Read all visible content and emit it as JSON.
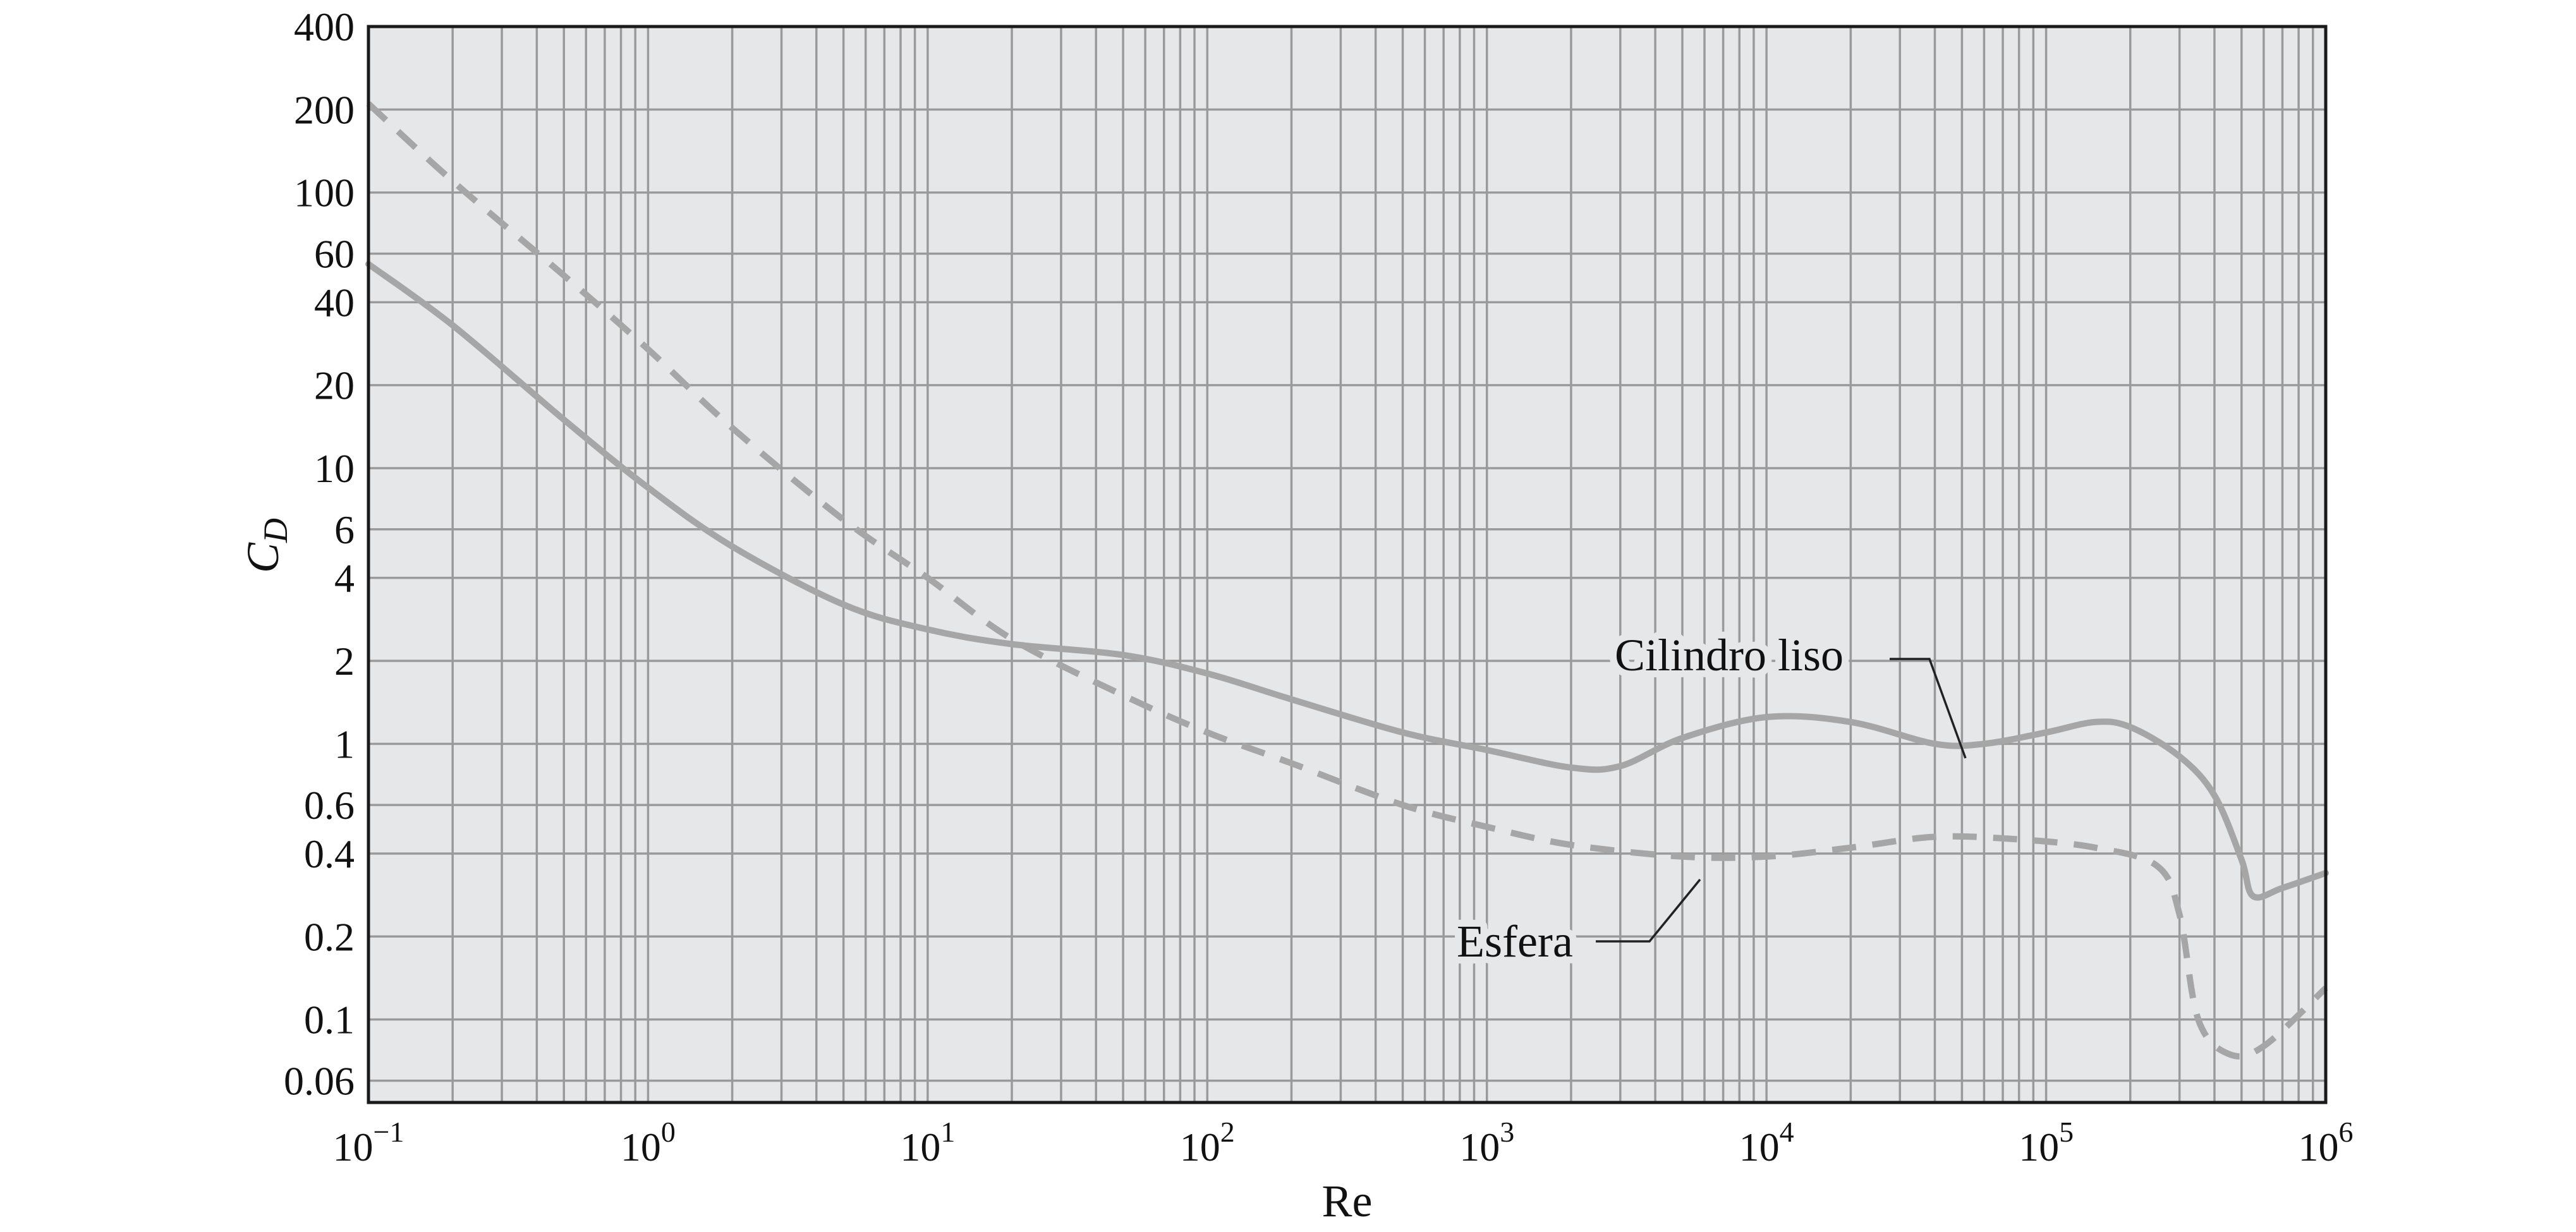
{
  "chart_data": {
    "type": "line",
    "title": "",
    "xlabel": "Re",
    "ylabel_main": "C",
    "ylabel_sub": "D",
    "x_scale": "log",
    "y_scale": "log",
    "xlim": [
      0.1,
      1000000
    ],
    "ylim": [
      0.05,
      400
    ],
    "grid": true,
    "x_tick_labels": [
      {
        "base": "10",
        "exp": "−1",
        "value": 0.1
      },
      {
        "base": "10",
        "exp": "0",
        "value": 1
      },
      {
        "base": "10",
        "exp": "1",
        "value": 10
      },
      {
        "base": "10",
        "exp": "2",
        "value": 100
      },
      {
        "base": "10",
        "exp": "3",
        "value": 1000
      },
      {
        "base": "10",
        "exp": "4",
        "value": 10000
      },
      {
        "base": "10",
        "exp": "5",
        "value": 100000
      },
      {
        "base": "10",
        "exp": "6",
        "value": 1000000
      }
    ],
    "y_tick_labels": [
      {
        "text": "400",
        "value": 400
      },
      {
        "text": "200",
        "value": 200
      },
      {
        "text": "100",
        "value": 100
      },
      {
        "text": "60",
        "value": 60
      },
      {
        "text": "40",
        "value": 40
      },
      {
        "text": "20",
        "value": 20
      },
      {
        "text": "10",
        "value": 10
      },
      {
        "text": "6",
        "value": 6
      },
      {
        "text": "4",
        "value": 4
      },
      {
        "text": "2",
        "value": 2
      },
      {
        "text": "1",
        "value": 1
      },
      {
        "text": "0.6",
        "value": 0.6
      },
      {
        "text": "0.4",
        "value": 0.4
      },
      {
        "text": "0.2",
        "value": 0.2
      },
      {
        "text": "0.1",
        "value": 0.1
      },
      {
        "text": "0.06",
        "value": 0.06
      }
    ],
    "series": [
      {
        "name": "Cilindro liso",
        "style": "solid",
        "color": "#a6a6a6",
        "x": [
          0.1,
          0.2,
          0.5,
          1,
          2,
          5,
          10,
          20,
          50,
          100,
          200,
          500,
          1000,
          2000,
          3000,
          5000,
          10000,
          20000,
          40000,
          60000,
          100000,
          150000,
          200000,
          300000,
          400000,
          500000,
          550000,
          700000,
          1000000
        ],
        "y": [
          55,
          33,
          15,
          8.5,
          5.2,
          3.2,
          2.6,
          2.3,
          2.1,
          1.8,
          1.45,
          1.1,
          0.95,
          0.82,
          0.83,
          1.05,
          1.25,
          1.2,
          1.0,
          1.0,
          1.1,
          1.2,
          1.15,
          0.9,
          0.65,
          0.38,
          0.28,
          0.3,
          0.34
        ]
      },
      {
        "name": "Esfera",
        "style": "dashed",
        "color": "#a6a6a6",
        "x": [
          0.1,
          0.2,
          0.5,
          1,
          2,
          5,
          10,
          20,
          50,
          100,
          200,
          500,
          1000,
          2000,
          5000,
          10000,
          20000,
          40000,
          80000,
          150000,
          250000,
          300000,
          350000,
          450000,
          600000,
          1000000
        ],
        "y": [
          210,
          110,
          50,
          27,
          14,
          6.5,
          4.0,
          2.4,
          1.5,
          1.1,
          0.85,
          0.6,
          0.5,
          0.43,
          0.39,
          0.39,
          0.42,
          0.46,
          0.45,
          0.42,
          0.36,
          0.24,
          0.1,
          0.075,
          0.08,
          0.13
        ]
      }
    ],
    "annotations": [
      {
        "text": "Cilindro liso",
        "target_x": 55000,
        "target_y": 1.0
      },
      {
        "text": "Esfera",
        "target_x": 5500,
        "target_y": 0.39
      }
    ],
    "colors": {
      "plot_background": "#e6e7e9",
      "grid": "#9a9a9a",
      "frame": "#1a1a1a",
      "curve": "#a6a6a6"
    }
  }
}
